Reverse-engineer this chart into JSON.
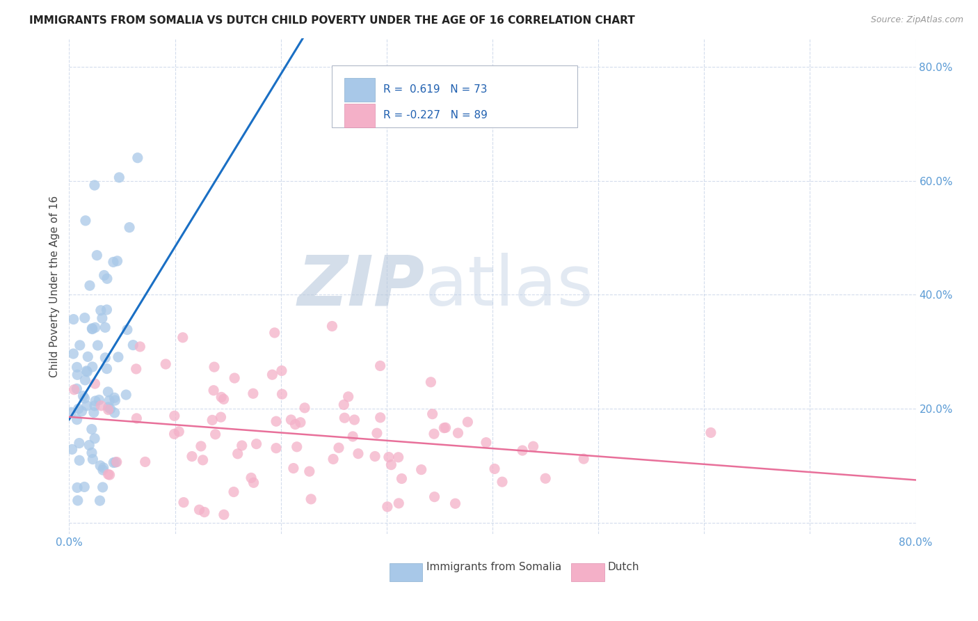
{
  "title": "IMMIGRANTS FROM SOMALIA VS DUTCH CHILD POVERTY UNDER THE AGE OF 16 CORRELATION CHART",
  "source": "Source: ZipAtlas.com",
  "ylabel": "Child Poverty Under the Age of 16",
  "xlim": [
    0.0,
    0.8
  ],
  "ylim": [
    -0.02,
    0.85
  ],
  "somalia_color": "#a8c8e8",
  "dutch_color": "#f4b0c8",
  "somalia_line_color": "#1a6fc4",
  "dutch_line_color": "#e8709a",
  "R_somalia": 0.619,
  "N_somalia": 73,
  "R_dutch": -0.227,
  "N_dutch": 89,
  "legend_label_somalia": "Immigrants from Somalia",
  "legend_label_dutch": "Dutch"
}
